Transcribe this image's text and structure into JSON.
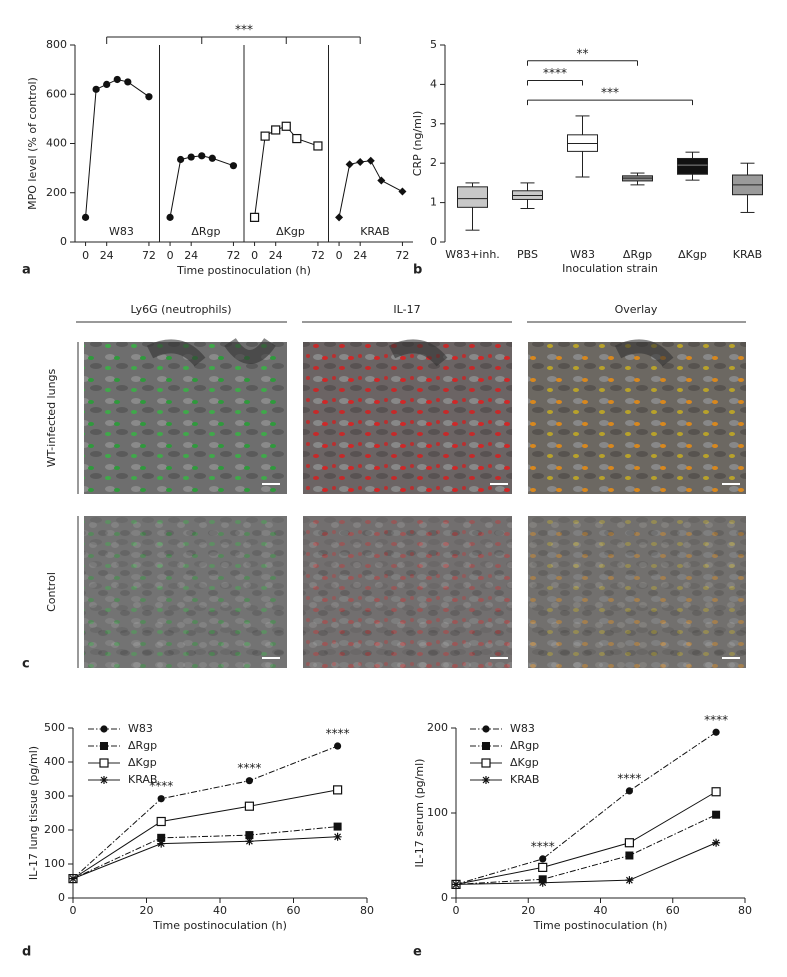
{
  "chart_data": [
    {
      "type": "line-panels",
      "panel": "a",
      "ylabel": "MPO level (% of control)",
      "xlabel": "Time postinoculation (h)",
      "x": [
        0,
        12,
        24,
        36,
        48,
        72
      ],
      "xlim": [
        -12,
        84
      ],
      "xticks": [
        0,
        24,
        72
      ],
      "ylim": [
        0,
        800
      ],
      "yticks": [
        0,
        200,
        400,
        600,
        800
      ],
      "annotation": "***",
      "groups": [
        {
          "name": "W83",
          "marker": "circle",
          "values": [
            100,
            620,
            640,
            660,
            650,
            590
          ]
        },
        {
          "name": "ΔRgp",
          "marker": "circle",
          "values": [
            100,
            335,
            345,
            350,
            340,
            310
          ]
        },
        {
          "name": "ΔKgp",
          "marker": "open-square",
          "values": [
            100,
            430,
            455,
            470,
            420,
            390
          ]
        },
        {
          "name": "KRAB",
          "marker": "diamond",
          "values": [
            100,
            315,
            325,
            330,
            250,
            205
          ]
        }
      ]
    },
    {
      "type": "box",
      "panel": "b",
      "ylabel": "CRP (ng/ml)",
      "xlabel": "Inoculation strain",
      "categories": [
        "W83+inh.",
        "PBS",
        "W83",
        "ΔRgp",
        "ΔKgp",
        "KRAB"
      ],
      "whislo": [
        0.3,
        0.85,
        1.65,
        1.45,
        1.57,
        0.75
      ],
      "q1": [
        0.88,
        1.08,
        2.3,
        1.55,
        1.72,
        1.2
      ],
      "median": [
        1.1,
        1.18,
        2.5,
        1.62,
        1.95,
        1.45
      ],
      "q3": [
        1.4,
        1.3,
        2.72,
        1.68,
        2.12,
        1.7
      ],
      "whishi": [
        1.5,
        1.5,
        3.2,
        1.75,
        2.28,
        2.0
      ],
      "colors": [
        "#c8c8c8",
        "#c8c8c8",
        "#ffffff",
        "#8c8c8c",
        "#111111",
        "#9a9a9a"
      ],
      "ylim": [
        0,
        5
      ],
      "yticks": [
        0,
        1,
        2,
        3,
        4,
        5
      ],
      "annotations": [
        "**",
        "****",
        "***"
      ]
    },
    {
      "type": "line",
      "panel": "d",
      "ylabel": "IL-17 lung tissue (pg/ml)",
      "xlabel": "Time postinoculation (h)",
      "x": [
        0,
        24,
        48,
        72
      ],
      "xlim": [
        0,
        80
      ],
      "xticks": [
        0,
        20,
        40,
        60,
        80
      ],
      "ylim": [
        0,
        500
      ],
      "yticks": [
        0,
        100,
        200,
        300,
        400,
        500
      ],
      "significance": [
        null,
        "****",
        "****",
        "****"
      ],
      "series": [
        {
          "name": "W83",
          "marker": "circle",
          "dash": "dashdot",
          "values": [
            57,
            292,
            345,
            447
          ]
        },
        {
          "name": "ΔRgp",
          "marker": "square",
          "dash": "dashdot",
          "values": [
            57,
            177,
            185,
            210
          ]
        },
        {
          "name": "ΔKgp",
          "marker": "open-square",
          "dash": "solid",
          "values": [
            57,
            225,
            270,
            318
          ]
        },
        {
          "name": "KRAB",
          "marker": "asterisk",
          "dash": "solid",
          "values": [
            57,
            160,
            167,
            180
          ]
        }
      ]
    },
    {
      "type": "line",
      "panel": "e",
      "ylabel": "IL-17 serum (pg/ml)",
      "xlabel": "Time postinoculation (h)",
      "x": [
        0,
        24,
        48,
        72
      ],
      "xlim": [
        0,
        80
      ],
      "xticks": [
        0,
        20,
        40,
        60,
        80
      ],
      "ylim": [
        0,
        200
      ],
      "yticks": [
        0,
        100,
        200
      ],
      "significance": [
        null,
        "****",
        "****",
        "****"
      ],
      "series": [
        {
          "name": "W83",
          "marker": "circle",
          "dash": "dashdot",
          "values": [
            16,
            46,
            126,
            195
          ]
        },
        {
          "name": "ΔRgp",
          "marker": "square",
          "dash": "dashdot",
          "values": [
            16,
            22,
            50,
            98
          ]
        },
        {
          "name": "ΔKgp",
          "marker": "open-square",
          "dash": "solid",
          "values": [
            16,
            36,
            65,
            125
          ]
        },
        {
          "name": "KRAB",
          "marker": "asterisk",
          "dash": "solid",
          "values": [
            16,
            18,
            21,
            65
          ]
        }
      ]
    }
  ],
  "images": {
    "panel": "c",
    "columns": [
      "Ly6G (neutrophils)",
      "IL-17",
      "Overlay"
    ],
    "rows": [
      "WT-infected lungs",
      "Control"
    ]
  }
}
